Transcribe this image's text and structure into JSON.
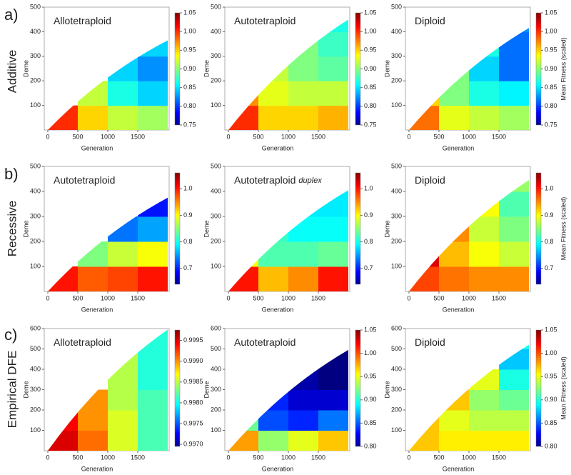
{
  "rows": [
    {
      "letter": "a)",
      "label": "Additive"
    },
    {
      "letter": "b)",
      "label": "Recessive"
    },
    {
      "letter": "c)",
      "label": "Empirical DFE"
    }
  ],
  "chart_data": [
    {
      "type": "heatmap",
      "title": "Allotetraploid",
      "xlabel": "Generation",
      "ylabel": "Deme",
      "xlim": [
        0,
        2000
      ],
      "xticks": [
        0,
        500,
        1000,
        1500
      ],
      "ylim": [
        0,
        500
      ],
      "yticks": [
        100,
        200,
        300,
        400,
        500
      ],
      "xbins": [
        0,
        500,
        1000,
        1500,
        2000
      ],
      "ybins": [
        0,
        100,
        200,
        300,
        400,
        500
      ],
      "front": 365,
      "z": [
        [
          1.0
        ],
        [
          0.95,
          0.92
        ],
        [
          0.92,
          0.87,
          0.85
        ],
        [
          0.91,
          0.85,
          0.83,
          0.85
        ]
      ],
      "clim": [
        0.75,
        1.05
      ],
      "cticks": [
        0.75,
        {
          "value": 0.8,
          "label": "0.80"
        },
        0.85,
        {
          "value": 0.9,
          "label": "0.90"
        },
        0.95,
        {
          "value": 1,
          "label": "1.00"
        },
        1.05
      ]
    },
    {
      "type": "heatmap",
      "title": "Autotetraploid",
      "xlabel": "Generation",
      "ylabel": "Deme",
      "xlim": [
        0,
        2000
      ],
      "xticks": [
        0,
        500,
        1000,
        1500
      ],
      "ylim": [
        0,
        500
      ],
      "yticks": [
        100,
        200,
        300,
        400,
        500
      ],
      "xbins": [
        0,
        500,
        1000,
        1500,
        2000
      ],
      "ybins": [
        0,
        100,
        200,
        300,
        400,
        500
      ],
      "front": 450,
      "z": [
        [
          1.0,
          0.97
        ],
        [
          0.95,
          0.93,
          0.92
        ],
        [
          0.95,
          0.92,
          0.9,
          0.9
        ],
        [
          0.96,
          0.92,
          0.89,
          0.88,
          0.87
        ]
      ],
      "clim": [
        0.75,
        1.05
      ],
      "cticks": [
        0.75,
        {
          "value": 0.8,
          "label": "0.80"
        },
        0.85,
        {
          "value": 0.9,
          "label": "0.90"
        },
        0.95,
        {
          "value": 1,
          "label": "1.00"
        },
        1.05
      ]
    },
    {
      "type": "heatmap",
      "title": "Diploid",
      "xlabel": "Generation",
      "ylabel": "Deme",
      "xlim": [
        0,
        2000
      ],
      "xticks": [
        0,
        500,
        1000,
        1500
      ],
      "ylim": [
        0,
        500
      ],
      "yticks": [
        100,
        200,
        300,
        400,
        500
      ],
      "xbins": [
        0,
        500,
        1000,
        1500,
        2000
      ],
      "ybins": [
        0,
        100,
        200,
        300,
        400,
        500
      ],
      "front": 415,
      "z": [
        [
          0.98,
          0.95
        ],
        [
          0.93,
          0.9,
          0.9
        ],
        [
          0.92,
          0.87,
          0.85,
          0.87
        ],
        [
          0.91,
          0.86,
          0.82,
          0.82,
          0.83
        ]
      ],
      "clim": [
        0.75,
        1.05
      ],
      "cticks": [
        0.75,
        {
          "value": 0.8,
          "label": "0.80"
        },
        0.85,
        {
          "value": 0.9,
          "label": "0.90"
        },
        0.95,
        {
          "value": 1,
          "label": "1.00"
        },
        1.05
      ],
      "colorbar_label": "Mean Fitness (scaled)"
    },
    {
      "type": "heatmap",
      "title": "Autotetraploid",
      "xlabel": "Generation",
      "ylabel": "Deme",
      "xlim": [
        0,
        2000
      ],
      "xticks": [
        0,
        500,
        1000,
        1500
      ],
      "ylim": [
        0,
        500
      ],
      "yticks": [
        100,
        200,
        300,
        400,
        500
      ],
      "xbins": [
        0,
        500,
        1000,
        1500,
        2000
      ],
      "ybins": [
        0,
        100,
        200,
        300,
        400,
        500
      ],
      "front": 375,
      "z": [
        [
          1.0
        ],
        [
          0.97,
          0.85
        ],
        [
          0.98,
          0.88,
          0.74
        ],
        [
          1.0,
          0.9,
          0.76,
          0.7
        ]
      ],
      "clim": [
        0.64,
        1.06
      ],
      "cticks": [
        0.7,
        0.8,
        0.9,
        {
          "value": 1,
          "label": "1.0"
        }
      ]
    },
    {
      "type": "heatmap",
      "title": "Autotetraploid",
      "title_italic": "duplex",
      "xlabel": "Generation",
      "ylabel": "Deme",
      "xlim": [
        0,
        2000
      ],
      "xticks": [
        0,
        500,
        1000,
        1500
      ],
      "ylim": [
        0,
        500
      ],
      "yticks": [
        100,
        200,
        300,
        400,
        500
      ],
      "xbins": [
        0,
        500,
        1000,
        1500,
        2000
      ],
      "ybins": [
        0,
        100,
        200,
        300,
        400,
        500
      ],
      "front": 405,
      "z": [
        [
          1.0,
          0.9
        ],
        [
          0.93,
          0.83,
          0.82
        ],
        [
          0.95,
          0.83,
          0.8,
          0.79
        ],
        [
          1.0,
          0.84,
          0.8,
          0.79,
          0.8
        ]
      ],
      "clim": [
        0.64,
        1.06
      ],
      "cticks": [
        0.7,
        0.8,
        0.9,
        {
          "value": 1,
          "label": "1.0"
        }
      ]
    },
    {
      "type": "heatmap",
      "title": "Diploid",
      "xlabel": "Generation",
      "ylabel": "Deme",
      "xlim": [
        0,
        2000
      ],
      "xticks": [
        0,
        500,
        1000,
        1500
      ],
      "ylim": [
        0,
        500
      ],
      "yticks": [
        100,
        200,
        300,
        400,
        500
      ],
      "xbins": [
        0,
        500,
        1000,
        1500,
        2000
      ],
      "ybins": [
        0,
        100,
        200,
        300,
        400,
        500
      ],
      "front": 445,
      "z": [
        [
          0.98,
          1.02
        ],
        [
          0.96,
          0.93,
          0.95
        ],
        [
          0.95,
          0.9,
          0.88,
          0.9
        ],
        [
          0.95,
          0.88,
          0.85,
          0.83,
          0.86
        ]
      ],
      "clim": [
        0.64,
        1.06
      ],
      "cticks": [
        0.7,
        0.8,
        0.9,
        {
          "value": 1,
          "label": "1.0"
        }
      ],
      "colorbar_label": "Mean Fitness (scaled)"
    },
    {
      "type": "heatmap",
      "title": "Allotetraploid",
      "xlabel": "Generation",
      "ylabel": "Deme",
      "xlim": [
        0,
        2000
      ],
      "xticks": [
        0,
        500,
        1000,
        1500
      ],
      "ylim": [
        0,
        600
      ],
      "yticks": [
        100,
        200,
        300,
        400,
        500,
        600
      ],
      "xbins": [
        0,
        500,
        1000,
        1500,
        2000
      ],
      "ybins": [
        0,
        100,
        200,
        300,
        400,
        500,
        600
      ],
      "front": 595,
      "z": [
        [
          0.9995,
          0.9994
        ],
        [
          0.9991,
          0.999,
          0.999
        ],
        [
          0.9986,
          0.9986,
          0.9985,
          0.9985,
          0.9985
        ],
        [
          0.9982,
          0.9982,
          0.9982,
          0.9981,
          0.9981,
          0.9981
        ]
      ],
      "clim": [
        0.99695,
        0.99975
      ],
      "cticks": [
        {
          "value": 0.997,
          "label": "0.9970"
        },
        0.9975,
        {
          "value": 0.998,
          "label": "0.9980"
        },
        0.9985,
        {
          "value": 0.999,
          "label": "0.9990"
        },
        0.9995
      ]
    },
    {
      "type": "heatmap",
      "title": "Autotetraploid",
      "xlabel": "Generation",
      "ylabel": "Deme",
      "xlim": [
        0,
        2000
      ],
      "xticks": [
        0,
        500,
        1000,
        1500
      ],
      "ylim": [
        0,
        600
      ],
      "yticks": [
        100,
        200,
        300,
        400,
        500,
        600
      ],
      "xbins": [
        0,
        500,
        1000,
        1500,
        2000
      ],
      "ybins": [
        0,
        100,
        200,
        300,
        400,
        500,
        600
      ],
      "front": 495,
      "z": [
        [
          0.98,
          0.92
        ],
        [
          0.93,
          0.85,
          0.84
        ],
        [
          0.95,
          0.84,
          0.82,
          0.81
        ],
        [
          0.97,
          0.86,
          0.82,
          0.8,
          0.8
        ]
      ],
      "clim": [
        0.8,
        1.05
      ],
      "cticks": [
        {
          "value": 0.8,
          "label": "0.80"
        },
        0.85,
        {
          "value": 0.9,
          "label": "0.90"
        },
        0.95,
        {
          "value": 1,
          "label": "1.00"
        },
        1.05
      ]
    },
    {
      "type": "heatmap",
      "title": "Diploid",
      "xlabel": "Generation",
      "ylabel": "Deme",
      "xlim": [
        0,
        2000
      ],
      "xticks": [
        0,
        500,
        1000,
        1500
      ],
      "ylim": [
        0,
        600
      ],
      "yticks": [
        100,
        200,
        300,
        400,
        500,
        600
      ],
      "xbins": [
        0,
        500,
        1000,
        1500,
        2000
      ],
      "ybins": [
        0,
        100,
        200,
        300,
        400,
        500,
        600
      ],
      "front": 520,
      "z": [
        [
          0.97,
          0.97
        ],
        [
          0.96,
          0.95,
          0.97
        ],
        [
          0.96,
          0.94,
          0.93,
          0.95
        ],
        [
          0.96,
          0.94,
          0.92,
          0.9,
          0.88,
          0.9
        ]
      ],
      "clim": [
        0.8,
        1.05
      ],
      "cticks": [
        {
          "value": 0.8,
          "label": "0.80"
        },
        0.85,
        {
          "value": 0.9,
          "label": "0.90"
        },
        0.95,
        {
          "value": 1,
          "label": "1.00"
        },
        1.05
      ],
      "colorbar_label": "Mean Fitness (scaled)"
    }
  ]
}
